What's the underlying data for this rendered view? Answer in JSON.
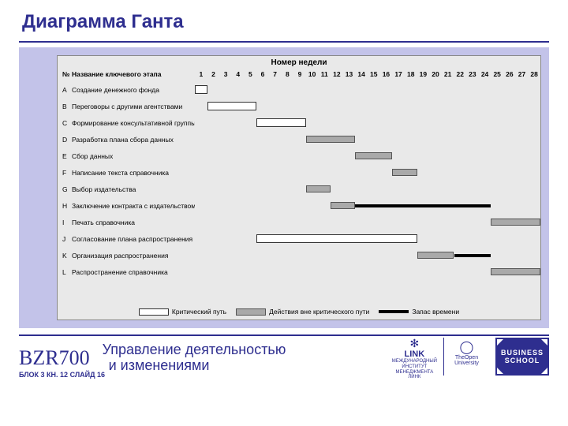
{
  "slide": {
    "title": "Диаграмма Ганта",
    "course_code": "BZR700",
    "block_info": "БЛОК 3 КН. 12 СЛАЙД 16",
    "course_title_line1": "Управление деятельностью",
    "course_title_line2": "и изменениями"
  },
  "chart": {
    "type": "gantt",
    "header": "Номер недели",
    "code_header": "№",
    "name_header": "Название ключевого этапа",
    "weeks_total": 28,
    "background_color": "#e9e9e9",
    "outer_background": "#c3c3e9",
    "colors": {
      "critical": "#ffffff",
      "noncritical": "#a9a9a9",
      "slack": "#000000",
      "border": "#333333"
    },
    "rows": [
      {
        "code": "A",
        "name": "Создание денежного фонда",
        "bars": [
          {
            "type": "crit",
            "start": 1,
            "end": 1
          }
        ]
      },
      {
        "code": "B",
        "name": "Переговоры с другими агентствами",
        "bars": [
          {
            "type": "crit",
            "start": 2,
            "end": 5
          }
        ]
      },
      {
        "code": "C",
        "name": "Формирование консультативной группы",
        "bars": [
          {
            "type": "crit",
            "start": 6,
            "end": 9
          }
        ]
      },
      {
        "code": "D",
        "name": "Разработка плана сбора данных",
        "bars": [
          {
            "type": "noncrit",
            "start": 10,
            "end": 13
          }
        ]
      },
      {
        "code": "E",
        "name": "Сбор данных",
        "bars": [
          {
            "type": "noncrit",
            "start": 14,
            "end": 16
          }
        ]
      },
      {
        "code": "F",
        "name": "Написание текста справочника",
        "bars": [
          {
            "type": "noncrit",
            "start": 17,
            "end": 18
          }
        ]
      },
      {
        "code": "G",
        "name": "Выбор издательства",
        "bars": [
          {
            "type": "noncrit",
            "start": 10,
            "end": 11
          }
        ]
      },
      {
        "code": "H",
        "name": "Заключение контракта с издательством",
        "bars": [
          {
            "type": "noncrit",
            "start": 12,
            "end": 13
          },
          {
            "type": "slack",
            "start": 14,
            "end": 24
          }
        ]
      },
      {
        "code": "I",
        "name": "Печать справочника",
        "bars": [
          {
            "type": "noncrit",
            "start": 25,
            "end": 28
          }
        ]
      },
      {
        "code": "J",
        "name": "Согласование плана распространения",
        "bars": [
          {
            "type": "crit",
            "start": 6,
            "end": 18
          }
        ]
      },
      {
        "code": "K",
        "name": "Организация распространения",
        "bars": [
          {
            "type": "noncrit",
            "start": 19,
            "end": 21
          },
          {
            "type": "slack",
            "start": 22,
            "end": 24
          }
        ]
      },
      {
        "code": "L",
        "name": "Распространение справочника",
        "bars": [
          {
            "type": "noncrit",
            "start": 25,
            "end": 28
          }
        ]
      }
    ],
    "legend": {
      "critical": "Критический путь",
      "noncritical": "Действия вне критического пути",
      "slack": "Запас времени"
    }
  },
  "logos": {
    "link_title": "LINK",
    "link_sub1": "МЕЖДУНАРОДНЫЙ",
    "link_sub2": "ИНСТИТУТ",
    "link_sub3": "МЕНЕДЖМЕНТА",
    "link_sub4": "ЛИНК",
    "ou1": "TheOpen",
    "ou2": "University",
    "bs1": "BUSINESS",
    "bs2": "SCHOOL"
  }
}
